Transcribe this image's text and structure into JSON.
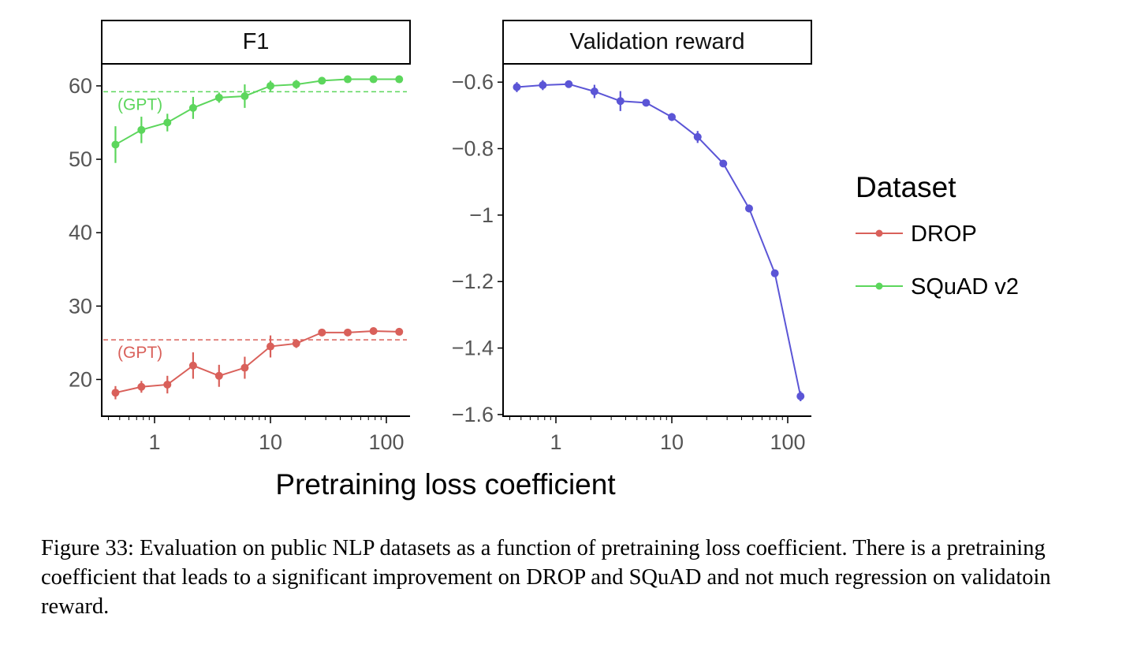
{
  "figure": {
    "x_axis_label": "Pretraining loss coefficient",
    "legend": {
      "title": "Dataset",
      "entries": [
        {
          "label": "DROP",
          "color": "#d9605a"
        },
        {
          "label": "SQuAD v2",
          "color": "#5cd65c"
        }
      ]
    },
    "caption": "Figure 33: Evaluation on public NLP datasets as a function of pretraining loss coefficient. There is a pretraining coefficient that leads to a significant improvement on DROP and SQuAD and not much regression on validatoin reward."
  },
  "chart_data": [
    {
      "type": "line",
      "title": "F1",
      "xscale": "log",
      "xlim": [
        0.35,
        160
      ],
      "xticks": [
        1,
        10,
        100
      ],
      "xtick_labels": [
        "1",
        "10",
        "100"
      ],
      "ylim": [
        15,
        63
      ],
      "yticks": [
        20,
        30,
        40,
        50,
        60
      ],
      "ytick_labels": [
        "20",
        "30",
        "40",
        "50",
        "60"
      ],
      "x": [
        0.46,
        0.77,
        1.29,
        2.15,
        3.6,
        6.0,
        10,
        16.7,
        27.8,
        46.4,
        77.4,
        129
      ],
      "series": [
        {
          "name": "SQuAD v2",
          "color": "#5cd65c",
          "values": [
            52.0,
            54.0,
            55.0,
            57.0,
            58.4,
            58.6,
            60.0,
            60.2,
            60.7,
            60.9,
            60.9,
            60.9
          ],
          "err": [
            2.5,
            1.8,
            1.2,
            1.5,
            0.7,
            1.6,
            0.7,
            0.6,
            0.4,
            0.4,
            0.3,
            0.3
          ],
          "baseline": 59.2,
          "baseline_label": "(GPT)"
        },
        {
          "name": "DROP",
          "color": "#d9605a",
          "values": [
            18.2,
            19.0,
            19.3,
            21.9,
            20.5,
            21.6,
            24.5,
            24.9,
            26.4,
            26.4,
            26.6,
            26.5
          ],
          "err": [
            0.9,
            0.8,
            1.2,
            1.8,
            1.5,
            1.5,
            1.5,
            0.6,
            0.5,
            0.4,
            0.4,
            0.4
          ],
          "baseline": 25.4,
          "baseline_label": "(GPT)"
        }
      ]
    },
    {
      "type": "line",
      "title": "Validation reward",
      "xscale": "log",
      "xlim": [
        0.35,
        160
      ],
      "xticks": [
        1,
        10,
        100
      ],
      "xtick_labels": [
        "1",
        "10",
        "100"
      ],
      "ylim": [
        -1.605,
        -0.545
      ],
      "yticks": [
        -0.6,
        -0.8,
        -1.0,
        -1.2,
        -1.4,
        -1.6
      ],
      "ytick_labels": [
        "−0.6",
        "−0.8",
        "−1",
        "−1.2",
        "−1.4",
        "−1.6"
      ],
      "x": [
        0.46,
        0.77,
        1.29,
        2.15,
        3.6,
        6.0,
        10,
        16.7,
        27.8,
        46.4,
        77.4,
        129
      ],
      "series": [
        {
          "color": "#5b55d6",
          "values": [
            -0.615,
            -0.609,
            -0.606,
            -0.628,
            -0.657,
            -0.662,
            -0.705,
            -0.765,
            -0.845,
            -0.98,
            -1.175,
            -1.545
          ],
          "err": [
            0.015,
            0.015,
            0.01,
            0.02,
            0.03,
            0.01,
            0.012,
            0.018,
            0.01,
            0.012,
            0.01,
            0.015
          ]
        }
      ]
    }
  ]
}
